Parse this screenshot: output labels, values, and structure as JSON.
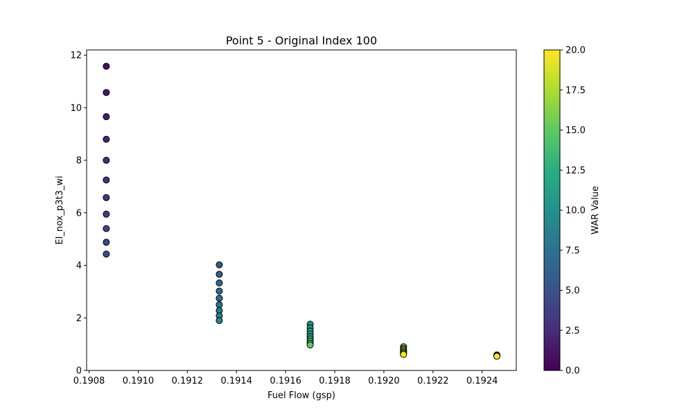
{
  "chart_data": {
    "type": "scatter",
    "title": "Point 5 - Original Index 100",
    "xlabel": "Fuel Flow (gsp)",
    "ylabel": "EI_nox_p3t3_wi",
    "xlim": [
      0.19079,
      0.192539
    ],
    "ylim": [
      0,
      12.2
    ],
    "xticks": [
      0.1908,
      0.191,
      0.1912,
      0.1914,
      0.1916,
      0.1918,
      0.192,
      0.1922,
      0.1924
    ],
    "xtick_labels": [
      "0.1908",
      "0.1910",
      "0.1912",
      "0.1914",
      "0.1916",
      "0.1918",
      "0.1920",
      "0.1922",
      "0.1924"
    ],
    "yticks": [
      0,
      2,
      4,
      6,
      8,
      10,
      12
    ],
    "ytick_labels": [
      "0",
      "2",
      "4",
      "6",
      "8",
      "10",
      "12"
    ],
    "grid": false,
    "colormap": "viridis",
    "colorbar": {
      "label": "WAR Value",
      "range": [
        0,
        20
      ],
      "ticks": [
        0,
        2.5,
        5,
        7.5,
        10,
        12.5,
        15,
        17.5,
        20
      ],
      "tick_labels": [
        "0.0",
        "2.5",
        "5.0",
        "7.5",
        "10.0",
        "12.5",
        "15.0",
        "17.5",
        "20.0"
      ]
    },
    "points": [
      {
        "x": 0.19087,
        "y": 11.58,
        "c": 1.0
      },
      {
        "x": 0.19087,
        "y": 10.58,
        "c": 1.3
      },
      {
        "x": 0.19087,
        "y": 9.66,
        "c": 1.6
      },
      {
        "x": 0.19087,
        "y": 8.8,
        "c": 2.0
      },
      {
        "x": 0.19087,
        "y": 8.0,
        "c": 2.4
      },
      {
        "x": 0.19087,
        "y": 7.25,
        "c": 2.8
      },
      {
        "x": 0.19087,
        "y": 6.58,
        "c": 3.2
      },
      {
        "x": 0.19087,
        "y": 5.95,
        "c": 3.6
      },
      {
        "x": 0.19087,
        "y": 5.4,
        "c": 4.0
      },
      {
        "x": 0.19087,
        "y": 4.88,
        "c": 4.4
      },
      {
        "x": 0.19087,
        "y": 4.43,
        "c": 4.8
      },
      {
        "x": 0.19133,
        "y": 4.02,
        "c": 5.4
      },
      {
        "x": 0.19133,
        "y": 3.66,
        "c": 5.8
      },
      {
        "x": 0.19133,
        "y": 3.33,
        "c": 6.3
      },
      {
        "x": 0.19133,
        "y": 3.02,
        "c": 6.8
      },
      {
        "x": 0.19133,
        "y": 2.75,
        "c": 7.3
      },
      {
        "x": 0.19133,
        "y": 2.5,
        "c": 7.8
      },
      {
        "x": 0.19133,
        "y": 2.28,
        "c": 8.3
      },
      {
        "x": 0.19133,
        "y": 2.08,
        "c": 8.8
      },
      {
        "x": 0.19133,
        "y": 1.9,
        "c": 9.3
      },
      {
        "x": 0.1917,
        "y": 1.76,
        "c": 10.2
      },
      {
        "x": 0.1917,
        "y": 1.62,
        "c": 10.8
      },
      {
        "x": 0.1917,
        "y": 1.5,
        "c": 11.4
      },
      {
        "x": 0.1917,
        "y": 1.39,
        "c": 12.0
      },
      {
        "x": 0.1917,
        "y": 1.29,
        "c": 12.6
      },
      {
        "x": 0.1917,
        "y": 1.2,
        "c": 13.2
      },
      {
        "x": 0.1917,
        "y": 1.12,
        "c": 13.8
      },
      {
        "x": 0.1917,
        "y": 1.04,
        "c": 14.4
      },
      {
        "x": 0.1917,
        "y": 0.97,
        "c": 15.0
      },
      {
        "x": 0.19208,
        "y": 0.9,
        "c": 15.8
      },
      {
        "x": 0.19208,
        "y": 0.84,
        "c": 16.4
      },
      {
        "x": 0.19208,
        "y": 0.79,
        "c": 17.0
      },
      {
        "x": 0.19208,
        "y": 0.74,
        "c": 17.6
      },
      {
        "x": 0.19208,
        "y": 0.69,
        "c": 18.2
      },
      {
        "x": 0.19208,
        "y": 0.65,
        "c": 18.8
      },
      {
        "x": 0.19208,
        "y": 0.61,
        "c": 19.4
      },
      {
        "x": 0.19246,
        "y": 0.59,
        "c": 19.6
      },
      {
        "x": 0.19246,
        "y": 0.56,
        "c": 19.8
      },
      {
        "x": 0.19246,
        "y": 0.54,
        "c": 20.0
      }
    ]
  }
}
